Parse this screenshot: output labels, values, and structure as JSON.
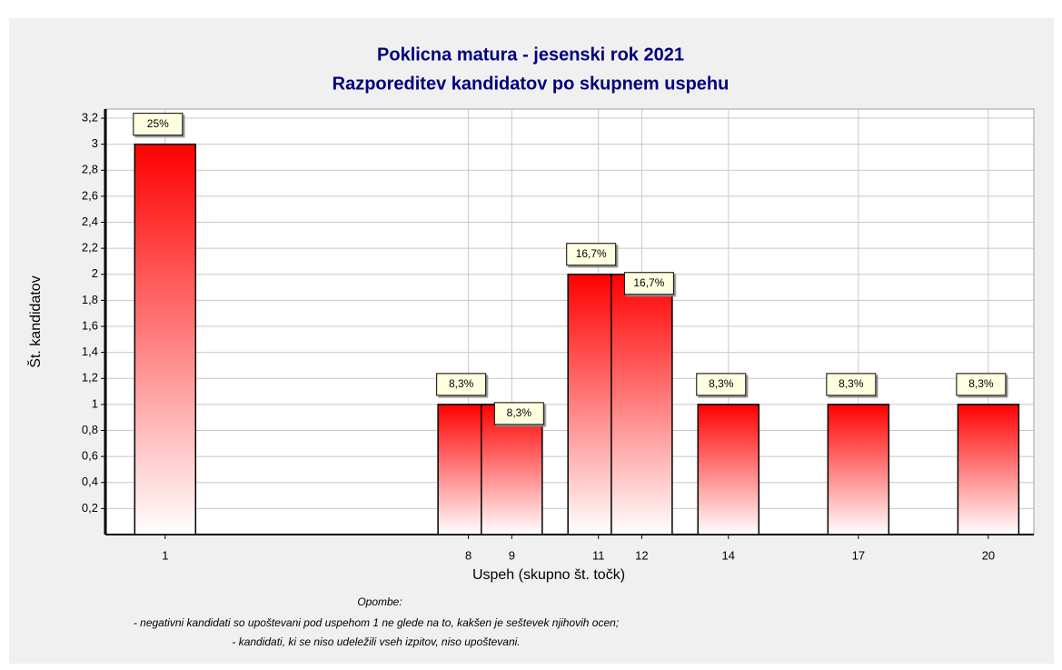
{
  "chart_data": {
    "type": "bar",
    "title": "Poklicna matura - jesenski rok 2021",
    "subtitle": "Razporeditev kandidatov po skupnem uspehu",
    "x_label": "Uspeh (skupno št. točk)",
    "y_label": "Št. kandidatov",
    "x": [
      1,
      8,
      9,
      11,
      12,
      14,
      17,
      20
    ],
    "values": [
      3,
      1,
      1,
      2,
      2,
      1,
      1,
      1
    ],
    "percent_labels": [
      "25%",
      "8,3%",
      "8,3%",
      "16,7%",
      "16,7%",
      "8,3%",
      "8,3%",
      "8,3%"
    ],
    "color": "#ff0000",
    "xlim": [
      -0.38,
      21.05
    ],
    "xticks": [
      1,
      8,
      9,
      11,
      12,
      14,
      17,
      20
    ],
    "ylim": [
      0,
      3.27
    ],
    "yticks": [
      {
        "value": 0.2,
        "label": "0,2"
      },
      {
        "value": 0.4,
        "label": "0,4"
      },
      {
        "value": 0.6,
        "label": "0,6"
      },
      {
        "value": 0.8,
        "label": "0,8"
      },
      1,
      {
        "value": 1.2,
        "label": "1,2"
      },
      {
        "value": 1.4,
        "label": "1,4"
      },
      {
        "value": 1.6,
        "label": "1,6"
      },
      {
        "value": 1.8,
        "label": "1,8"
      },
      2,
      {
        "value": 2.2,
        "label": "2,2"
      },
      {
        "value": 2.4,
        "label": "2,4"
      },
      {
        "value": 2.6,
        "label": "2,6"
      },
      {
        "value": 2.8,
        "label": "2,8"
      },
      3,
      {
        "value": 3.2,
        "label": "3,2"
      }
    ],
    "grid": true,
    "notes_title": "Opombe:",
    "notes": [
      "- negativni kandidati so upoštevani pod uspehom 1 ne glede na to, kakšen je seštevek njihovih ocen;",
      "- kandidati, ki se niso udeležili vseh izpitov, niso upoštevani."
    ]
  }
}
